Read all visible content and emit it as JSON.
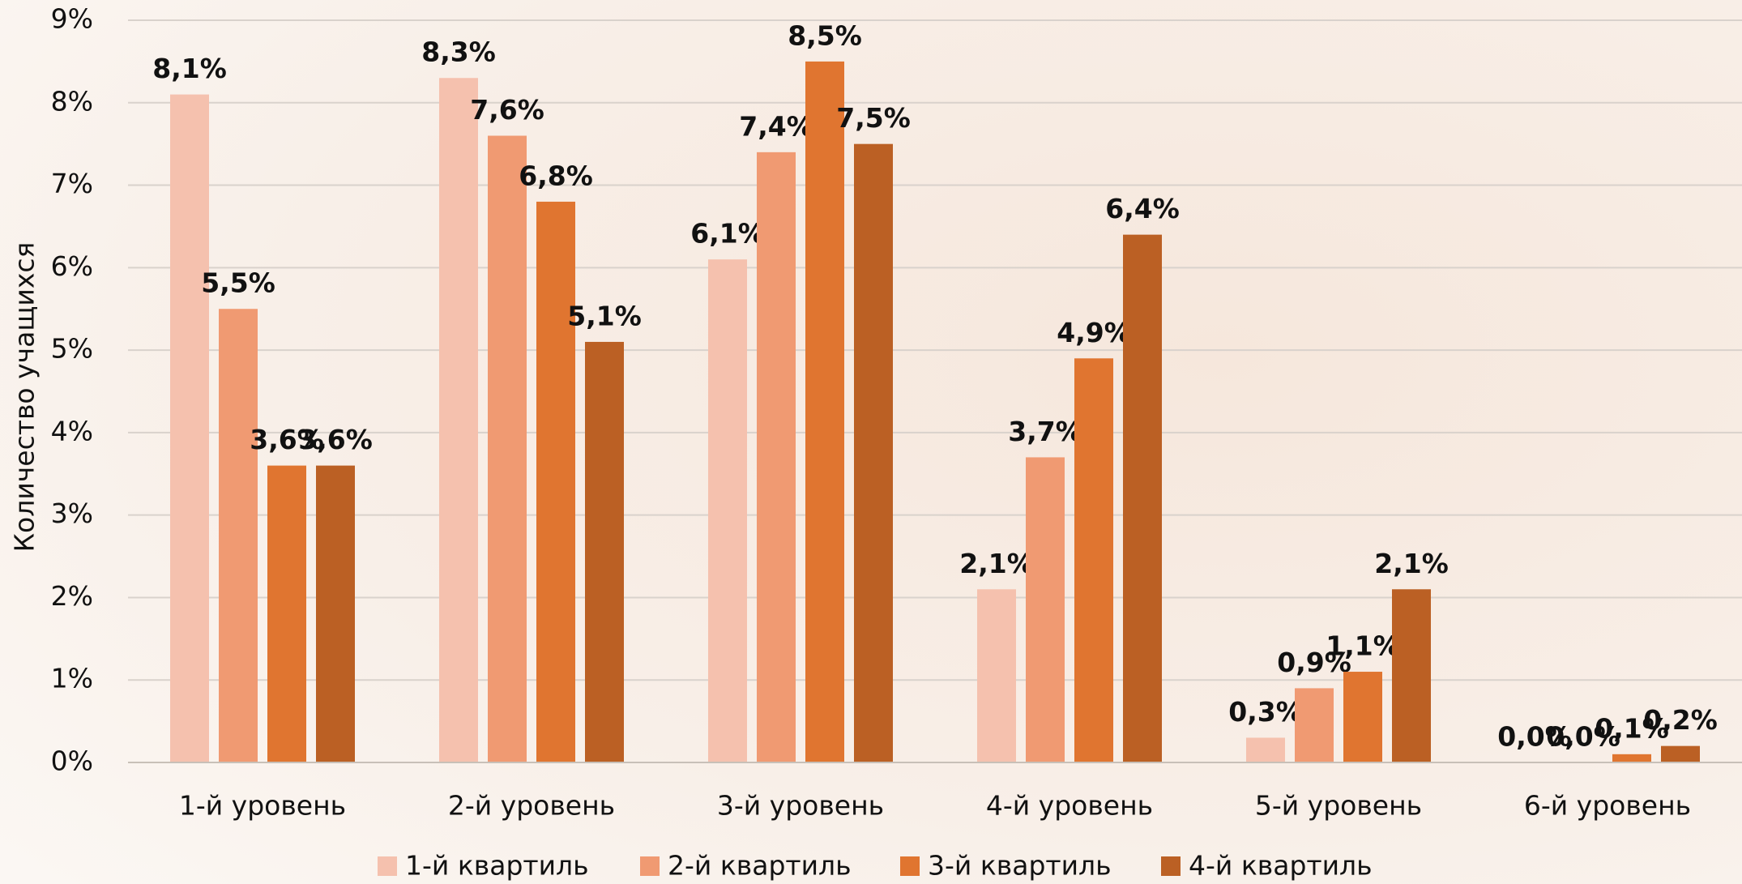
{
  "chart_data": {
    "type": "bar",
    "y_label": "Количество учащихся",
    "categories": [
      "1-й уровень",
      "2-й уровень",
      "3-й уровень",
      "4-й уровень",
      "5-й уровень",
      "6-й уровень"
    ],
    "series": [
      {
        "name": "1-й квартиль",
        "color": "#f5c1ae",
        "values": [
          8.1,
          8.3,
          6.1,
          2.1,
          0.3,
          0.0
        ],
        "value_labels": [
          "8,1%",
          "8,3%",
          "6,1%",
          "2,1%",
          "0,3%",
          "0,0%"
        ]
      },
      {
        "name": "2-й квартиль",
        "color": "#f09a72",
        "values": [
          5.5,
          7.6,
          7.4,
          3.7,
          0.9,
          0.0
        ],
        "value_labels": [
          "5,5%",
          "7,6%",
          "7,4%",
          "3,7%",
          "0,9%",
          "0,0%"
        ]
      },
      {
        "name": "3-й квартиль",
        "color": "#e07530",
        "values": [
          3.6,
          6.8,
          8.5,
          4.9,
          1.1,
          0.1
        ],
        "value_labels": [
          "3,6%",
          "6,8%",
          "8,5%",
          "4,9%",
          "1,1%",
          "0,1%"
        ]
      },
      {
        "name": "4-й квартиль",
        "color": "#bb6024",
        "values": [
          3.6,
          5.1,
          7.5,
          6.4,
          2.1,
          0.2
        ],
        "value_labels": [
          "3,6%",
          "5,1%",
          "7,5%",
          "6,4%",
          "2,1%",
          "0,2%"
        ]
      }
    ],
    "ylim": [
      0,
      9
    ],
    "yticks": [
      {
        "value": 0,
        "label": "0%"
      },
      {
        "value": 1,
        "label": "1%"
      },
      {
        "value": 2,
        "label": "2%"
      },
      {
        "value": 3,
        "label": "3%"
      },
      {
        "value": 4,
        "label": "4%"
      },
      {
        "value": 5,
        "label": "5%"
      },
      {
        "value": 6,
        "label": "6%"
      },
      {
        "value": 7,
        "label": "7%"
      },
      {
        "value": 8,
        "label": "8%"
      },
      {
        "value": 9,
        "label": "9%"
      }
    ],
    "grid": true,
    "legend": "bottom"
  }
}
